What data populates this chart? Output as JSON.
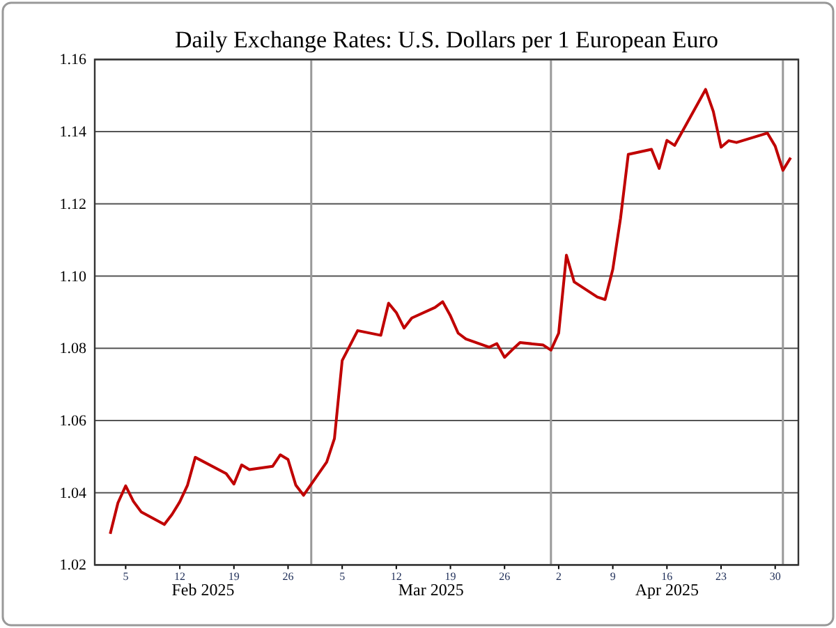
{
  "chart_data": {
    "type": "line",
    "title": "Daily Exchange Rates: U.S. Dollars per 1 European Euro",
    "x": [
      "2025-02-03",
      "2025-02-04",
      "2025-02-05",
      "2025-02-06",
      "2025-02-07",
      "2025-02-10",
      "2025-02-11",
      "2025-02-12",
      "2025-02-13",
      "2025-02-14",
      "2025-02-18",
      "2025-02-19",
      "2025-02-20",
      "2025-02-21",
      "2025-02-24",
      "2025-02-25",
      "2025-02-26",
      "2025-02-27",
      "2025-02-28",
      "2025-03-03",
      "2025-03-04",
      "2025-03-05",
      "2025-03-07",
      "2025-03-10",
      "2025-03-11",
      "2025-03-12",
      "2025-03-13",
      "2025-03-14",
      "2025-03-17",
      "2025-03-18",
      "2025-03-19",
      "2025-03-20",
      "2025-03-21",
      "2025-03-24",
      "2025-03-25",
      "2025-03-26",
      "2025-03-27",
      "2025-03-28",
      "2025-03-31",
      "2025-04-01",
      "2025-04-02",
      "2025-04-03",
      "2025-04-04",
      "2025-04-07",
      "2025-04-08",
      "2025-04-09",
      "2025-04-10",
      "2025-04-11",
      "2025-04-14",
      "2025-04-15",
      "2025-04-16",
      "2025-04-17",
      "2025-04-21",
      "2025-04-22",
      "2025-04-23",
      "2025-04-24",
      "2025-04-25",
      "2025-04-29",
      "2025-04-30",
      "2025-05-01",
      "2025-05-02"
    ],
    "series": [
      {
        "color": "#c00000",
        "values": [
          1.0286,
          1.0372,
          1.0419,
          1.0376,
          1.0347,
          1.0312,
          1.034,
          1.0375,
          1.0421,
          1.0498,
          1.0453,
          1.0424,
          1.0477,
          1.0464,
          1.0473,
          1.0505,
          1.0492,
          1.0421,
          1.0393,
          1.0485,
          1.055,
          1.0766,
          1.0849,
          1.0836,
          1.0925,
          1.0899,
          1.0856,
          1.0884,
          1.0913,
          1.0929,
          1.089,
          1.0842,
          1.0826,
          1.0803,
          1.0813,
          1.0775,
          1.0796,
          1.0816,
          1.0809,
          1.0795,
          1.0842,
          1.1058,
          1.0984,
          1.0942,
          1.0935,
          1.1019,
          1.116,
          1.1337,
          1.1351,
          1.1298,
          1.1376,
          1.1362,
          1.1517,
          1.1456,
          1.1357,
          1.1375,
          1.137,
          1.1396,
          1.136,
          1.1293,
          1.1328
        ]
      }
    ],
    "xlim": [
      "2025-02-01",
      "2025-05-03"
    ],
    "xticks": [
      {
        "value": "2025-02-05",
        "label": "5"
      },
      {
        "value": "2025-02-12",
        "label": "12"
      },
      {
        "value": "2025-02-19",
        "label": "19"
      },
      {
        "value": "2025-02-26",
        "label": "26"
      },
      {
        "value": "2025-03-05",
        "label": "5"
      },
      {
        "value": "2025-03-12",
        "label": "12"
      },
      {
        "value": "2025-03-19",
        "label": "19"
      },
      {
        "value": "2025-03-26",
        "label": "26"
      },
      {
        "value": "2025-04-02",
        "label": "2"
      },
      {
        "value": "2025-04-09",
        "label": "9"
      },
      {
        "value": "2025-04-16",
        "label": "16"
      },
      {
        "value": "2025-04-23",
        "label": "23"
      },
      {
        "value": "2025-04-30",
        "label": "30"
      },
      {
        "value": "2025-03-01",
        "label": null
      },
      {
        "value": "2025-04-01",
        "label": null
      },
      {
        "value": "2025-05-01",
        "label": null
      }
    ],
    "ylim": [
      1.02,
      1.16
    ],
    "yticks": [
      {
        "value": 1.02,
        "label": "1.02"
      },
      {
        "value": 1.04,
        "label": "1.04"
      },
      {
        "value": 1.06,
        "label": "1.06"
      },
      {
        "value": 1.08,
        "label": "1.08"
      },
      {
        "value": 1.1,
        "label": "1.10"
      },
      {
        "value": 1.12,
        "label": "1.12"
      },
      {
        "value": 1.14,
        "label": "1.14"
      },
      {
        "value": 1.16,
        "label": "1.16"
      }
    ],
    "annotations": [
      "Feb 2025",
      "Mar 2025",
      "Apr 2025"
    ],
    "grid": true,
    "marker": "none",
    "line_style": "solid"
  }
}
